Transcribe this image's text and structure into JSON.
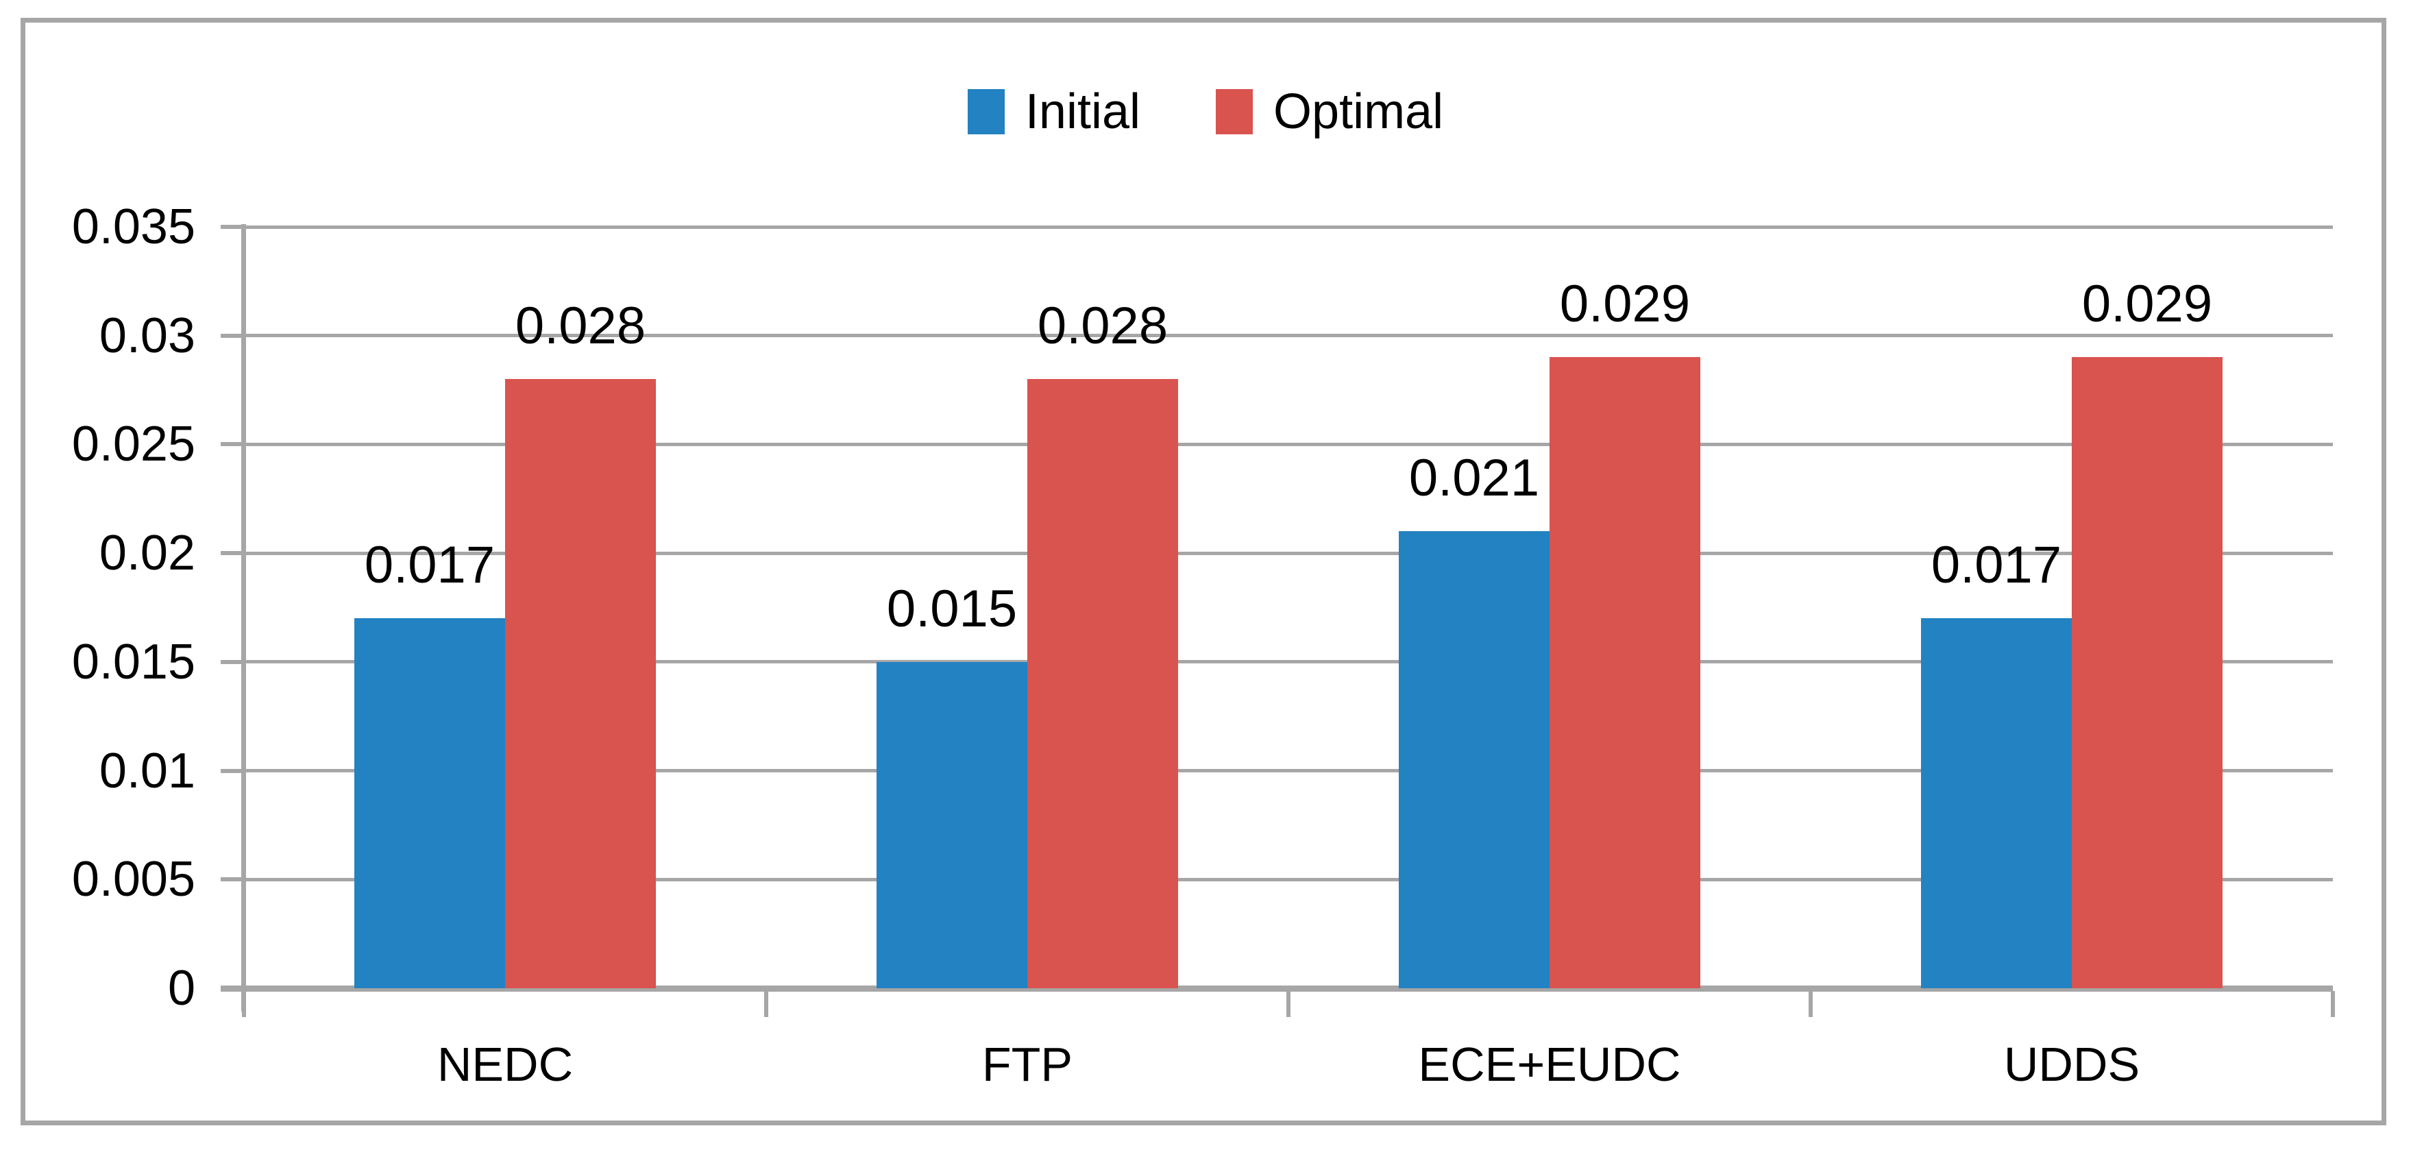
{
  "chart_data": {
    "type": "bar",
    "title": "",
    "categories": [
      "NEDC",
      "FTP",
      "ECE+EUDC",
      "UDDS"
    ],
    "series": [
      {
        "name": "Initial",
        "color": "#2382C2",
        "values": [
          0.017,
          0.015,
          0.021,
          0.017
        ],
        "data_labels": [
          "0.017",
          "0.015",
          "0.021",
          "0.017"
        ]
      },
      {
        "name": "Optimal",
        "color": "#D9534F",
        "values": [
          0.028,
          0.028,
          0.029,
          0.029
        ],
        "data_labels": [
          "0.028",
          "0.028",
          "0.029",
          "0.029"
        ]
      }
    ],
    "xlabel": "",
    "ylabel": "",
    "ylim": [
      0,
      0.035
    ],
    "y_tick_values": [
      0,
      0.005,
      0.01,
      0.015,
      0.02,
      0.025,
      0.03,
      0.035
    ],
    "y_tick_labels": [
      "0",
      "0.005",
      "0.01",
      "0.015",
      "0.02",
      "0.025",
      "0.03",
      "0.035"
    ],
    "grid": true,
    "legend_position": "top-center",
    "colors": {
      "grid": "#A6A6A6",
      "axis": "#A6A6A6",
      "frame": "#A6A6A6",
      "label_text": "#000000",
      "background": "#FFFFFF"
    }
  }
}
